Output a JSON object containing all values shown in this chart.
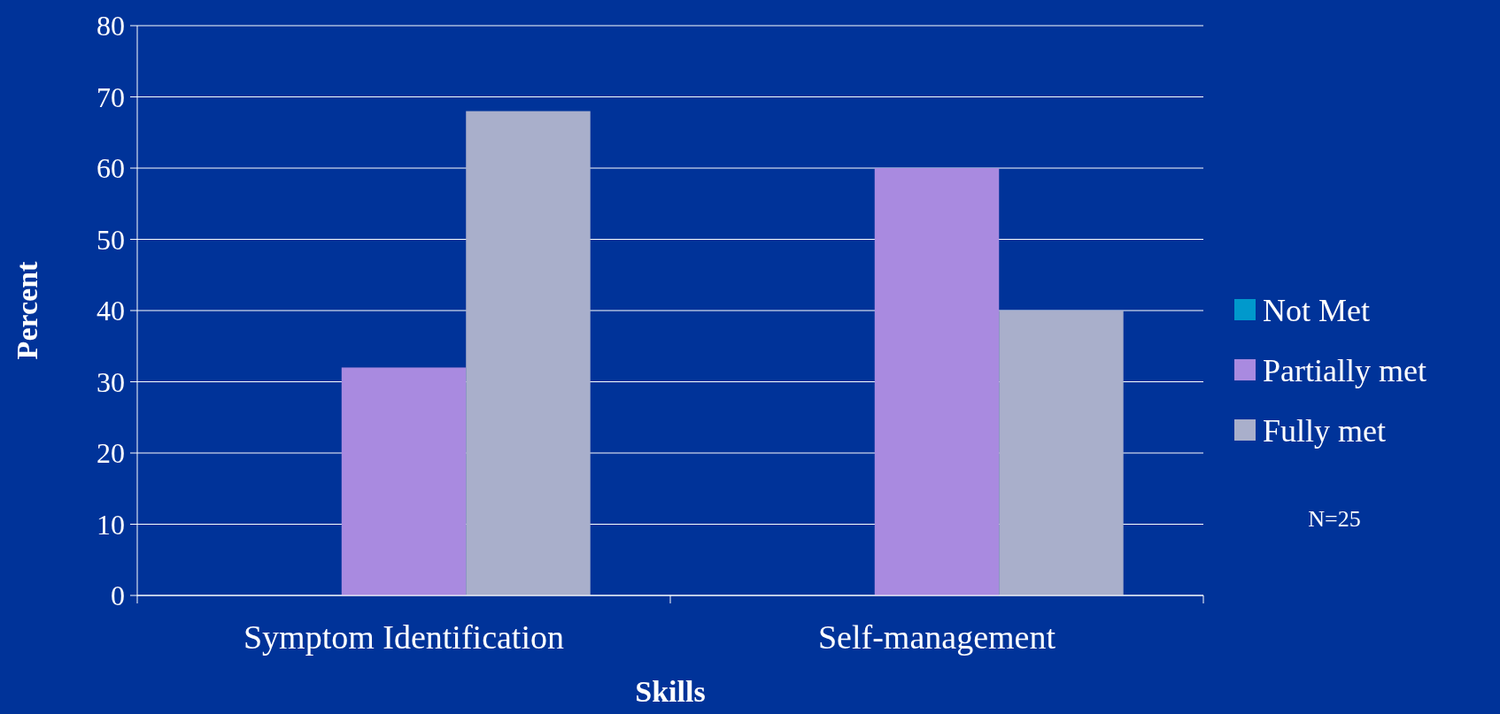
{
  "chart_data": {
    "type": "bar",
    "xlabel": "Skills",
    "ylabel": "Percent",
    "categories": [
      "Symptom Identification",
      "Self-management"
    ],
    "series": [
      {
        "name": "Not Met",
        "color": "#0099cc",
        "values": [
          0,
          0
        ]
      },
      {
        "name": "Partially met",
        "color": "#a98ae0",
        "values": [
          32,
          60
        ]
      },
      {
        "name": "Fully met",
        "color": "#a9afcb",
        "values": [
          68,
          40
        ]
      }
    ],
    "ylim": [
      0,
      80
    ],
    "yticks": [
      0,
      10,
      20,
      30,
      40,
      50,
      60,
      70,
      80
    ],
    "grid": "y",
    "legend": "right",
    "annotations": [
      "N=25"
    ]
  }
}
